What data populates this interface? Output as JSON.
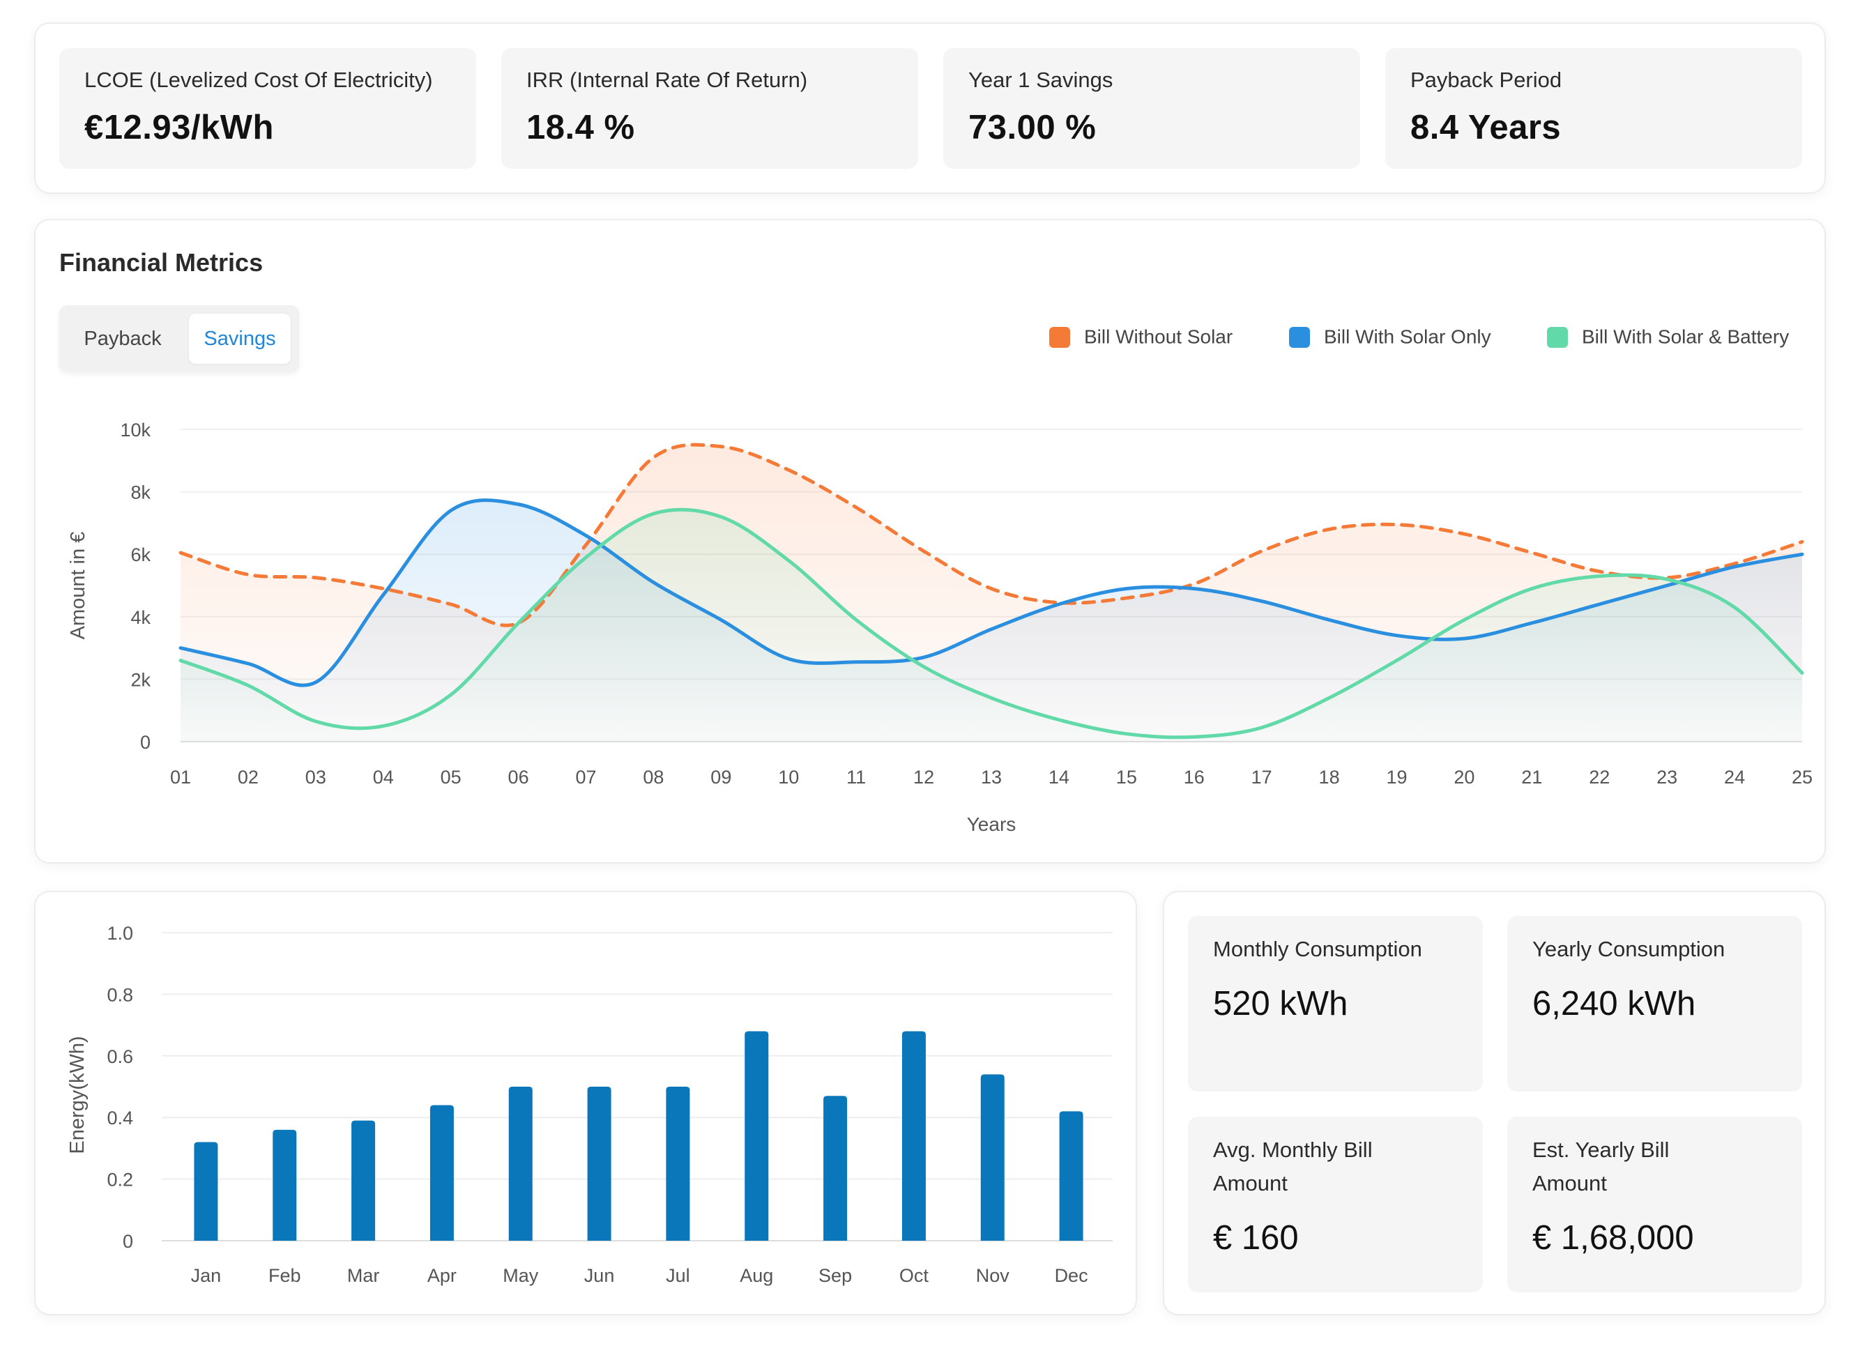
{
  "kpis": [
    {
      "label": "LCOE (Levelized Cost Of Electricity)",
      "value": "€12.93/kWh"
    },
    {
      "label": "IRR (Internal Rate Of Return)",
      "value": "18.4 %"
    },
    {
      "label": "Year 1 Savings",
      "value": "73.00 %"
    },
    {
      "label": "Payback Period",
      "value": "8.4 Years"
    }
  ],
  "financial": {
    "title": "Financial Metrics",
    "tabs": {
      "payback": "Payback",
      "savings": "Savings",
      "active": "Savings"
    }
  },
  "chart_data": [
    {
      "type": "line",
      "xlabel": "Years",
      "ylabel": "Amount in €",
      "ylim": [
        0,
        10000
      ],
      "yticks": [
        "0",
        "2k",
        "4k",
        "6k",
        "8k",
        "10k"
      ],
      "categories": [
        "01",
        "02",
        "03",
        "04",
        "05",
        "06",
        "07",
        "08",
        "09",
        "10",
        "11",
        "12",
        "13",
        "14",
        "15",
        "16",
        "17",
        "18",
        "19",
        "20",
        "21",
        "22",
        "23",
        "24",
        "25"
      ],
      "legend_position": "top-right",
      "grid": true,
      "series": [
        {
          "name": "Bill Without Solar",
          "color": "#f47a38",
          "style": "dashed",
          "values": [
            6050,
            5350,
            5250,
            4900,
            4400,
            3800,
            6300,
            9100,
            9450,
            8700,
            7500,
            6100,
            4900,
            4450,
            4600,
            5050,
            6100,
            6800,
            6950,
            6650,
            6050,
            5450,
            5250,
            5700,
            6400
          ]
        },
        {
          "name": "Bill With Solar Only",
          "color": "#2b8fe0",
          "style": "solid",
          "values": [
            3000,
            2500,
            1900,
            4700,
            7400,
            7600,
            6600,
            5100,
            3900,
            2650,
            2550,
            2700,
            3600,
            4400,
            4900,
            4900,
            4500,
            3900,
            3400,
            3300,
            3800,
            4400,
            5000,
            5600,
            6000
          ]
        },
        {
          "name": "Bill With Solar & Battery",
          "color": "#62d9a8",
          "style": "solid",
          "values": [
            2600,
            1800,
            650,
            500,
            1500,
            3800,
            5900,
            7300,
            7200,
            5800,
            3900,
            2400,
            1400,
            700,
            250,
            150,
            450,
            1400,
            2600,
            3900,
            4900,
            5300,
            5200,
            4300,
            2200
          ]
        }
      ]
    },
    {
      "type": "bar",
      "ylabel": "Energy(kWh)",
      "xlabel": "",
      "ylim": [
        0,
        1.0
      ],
      "yticks": [
        "0",
        "0.2",
        "0.4",
        "0.6",
        "0.8",
        "1.0"
      ],
      "grid": true,
      "categories": [
        "Jan",
        "Feb",
        "Mar",
        "Apr",
        "May",
        "Jun",
        "Jul",
        "Aug",
        "Sep",
        "Oct",
        "Nov",
        "Dec"
      ],
      "color": "#0a77ba",
      "values": [
        0.32,
        0.36,
        0.39,
        0.44,
        0.5,
        0.5,
        0.5,
        0.68,
        0.47,
        0.68,
        0.54,
        0.42
      ]
    }
  ],
  "stats": [
    {
      "label": "Monthly Consumption",
      "value": "520 kWh"
    },
    {
      "label": "Yearly Consumption",
      "value": "6,240 kWh"
    },
    {
      "label": "Avg. Monthly Bill Amount",
      "value": "€ 160"
    },
    {
      "label": "Est. Yearly Bill Amount",
      "value": "€ 1,68,000"
    }
  ]
}
